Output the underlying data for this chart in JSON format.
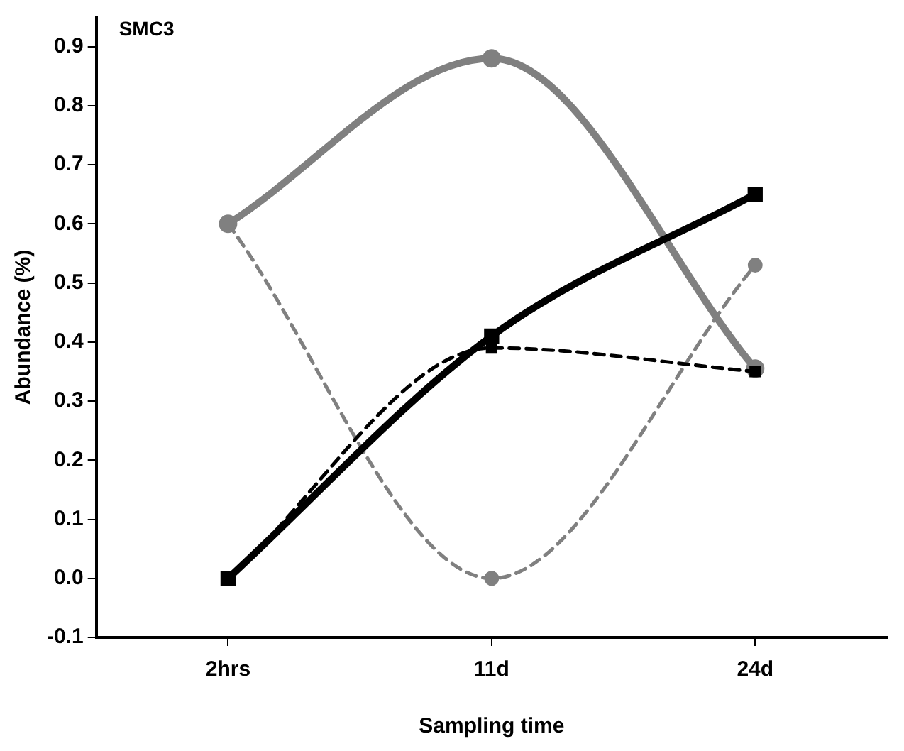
{
  "chart_data": {
    "type": "line",
    "title": "SMC3",
    "xlabel": "Sampling time",
    "ylabel": "Abundance (%)",
    "categories": [
      "2hrs",
      "11d",
      "24d"
    ],
    "series": [
      {
        "color": "#808080",
        "values": [
          0.6,
          0.88,
          0.355
        ],
        "marker": "circle",
        "line_style": "solid"
      },
      {
        "color": "#808080",
        "values": [
          0.6,
          0.0,
          0.53
        ],
        "marker": "circle",
        "line_style": "dashed"
      },
      {
        "color": "#000000",
        "values": [
          0.0,
          0.41,
          0.65
        ],
        "marker": "square",
        "line_style": "solid"
      },
      {
        "color": "#000000",
        "values": [
          0.0,
          0.39,
          0.35
        ],
        "marker": "square",
        "line_style": "dashed"
      }
    ],
    "ylim": [
      -0.1,
      0.95
    ],
    "yticks": [
      -0.1,
      {
        "value": 0,
        "label": "0.0"
      },
      0.1,
      0.2,
      0.3,
      0.4,
      0.5,
      0.6,
      0.7,
      0.8,
      0.9
    ],
    "grid": false,
    "legend": false
  }
}
